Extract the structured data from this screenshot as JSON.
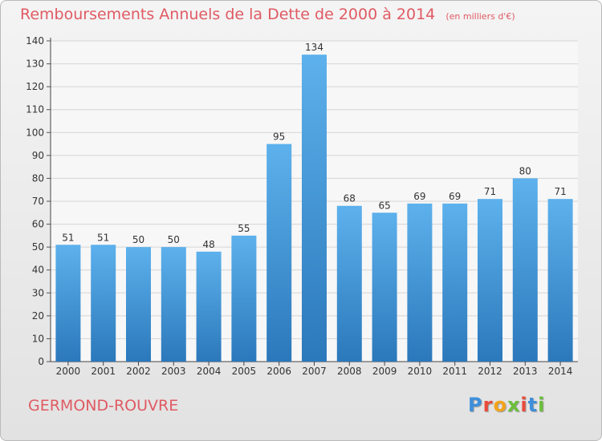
{
  "title": "Remboursements Annuels de la Dette de 2000 à 2014",
  "unit_note": "(en milliers d'€)",
  "commune": "GERMOND-ROUVRE",
  "logo": {
    "text": "Proxiti",
    "colors": [
      "#3d8fdc",
      "#e94b3c",
      "#f3a41b",
      "#6abf3a",
      "#e94b3c",
      "#3d8fdc",
      "#6abf3a"
    ]
  },
  "colors": {
    "bar_light": "#5db1ec",
    "bar_dark": "#2b78bb",
    "title": "#e05a63",
    "grid": "#d5d5d5"
  },
  "chart_data": {
    "type": "bar",
    "title": "Remboursements Annuels de la Dette de 2000 à 2014",
    "unit": "(en milliers d'€)",
    "xlabel": "",
    "ylabel": "",
    "categories": [
      "2000",
      "2001",
      "2002",
      "2003",
      "2004",
      "2005",
      "2006",
      "2007",
      "2008",
      "2009",
      "2010",
      "2011",
      "2012",
      "2013",
      "2014"
    ],
    "values": [
      51,
      51,
      50,
      50,
      48,
      55,
      95,
      134,
      68,
      65,
      69,
      69,
      71,
      80,
      71
    ],
    "ylim": [
      0,
      140
    ],
    "yticks": [
      0,
      10,
      20,
      30,
      40,
      50,
      60,
      70,
      80,
      90,
      100,
      110,
      120,
      130,
      140
    ],
    "grid": true,
    "legend": "none"
  }
}
